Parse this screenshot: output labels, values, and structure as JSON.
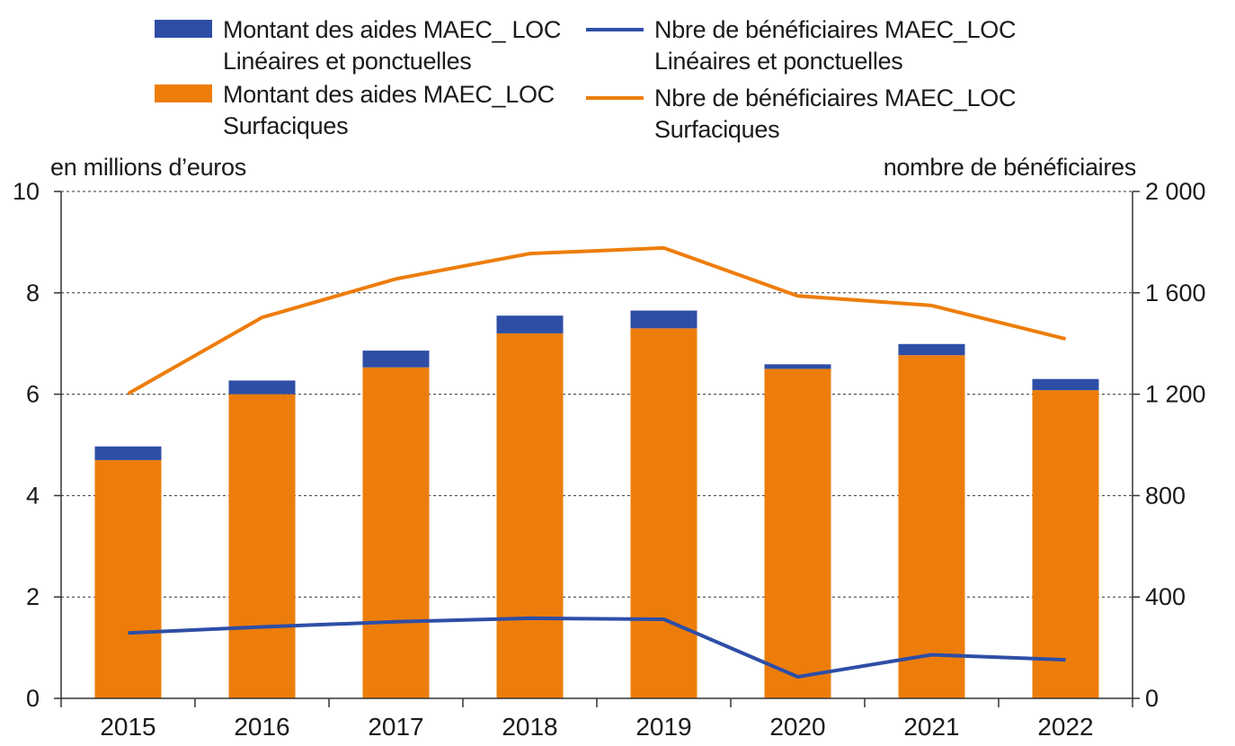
{
  "chart_data": {
    "type": "bar",
    "categories": [
      "2015",
      "2016",
      "2017",
      "2018",
      "2019",
      "2020",
      "2021",
      "2022"
    ],
    "y_left": {
      "label": "en millions d’euros",
      "range": [
        0,
        10
      ],
      "ticks": [
        0,
        2,
        4,
        6,
        8,
        10
      ],
      "tick_labels": [
        "0",
        "2",
        "4",
        "6",
        "8",
        "10"
      ]
    },
    "y_right": {
      "label": "nombre de bénéficiaires",
      "range": [
        0,
        2000
      ],
      "ticks": [
        0,
        400,
        800,
        1200,
        1600,
        2000
      ],
      "tick_labels": [
        "0",
        "400",
        "800",
        "1 200",
        "1 600",
        "2 000"
      ]
    },
    "bar_series": [
      {
        "name": "Montant des aides MAEC_LOC Surfaciques",
        "color": "#ED7D0B",
        "values": [
          4.7,
          6.0,
          6.53,
          7.2,
          7.3,
          6.5,
          6.77,
          6.08
        ]
      },
      {
        "name": "Montant des aides MAEC_ LOC Linéaires et ponctuelles",
        "color": "#2E4EA6",
        "values": [
          0.27,
          0.27,
          0.33,
          0.35,
          0.35,
          0.09,
          0.22,
          0.22
        ]
      }
    ],
    "line_series": [
      {
        "name": "Nbre de bénéficiaires MAEC_LOC Linéaires et ponctuelles",
        "color": "#2E4EA6",
        "axis": "right",
        "values": [
          258,
          282,
          302,
          316,
          312,
          85,
          172,
          152
        ]
      },
      {
        "name": "Nbre de bénéficiaires  MAEC_LOC Surfaciques",
        "color": "#ED7D0B",
        "axis": "right",
        "values": [
          1202,
          1503,
          1655,
          1755,
          1777,
          1588,
          1550,
          1418
        ]
      }
    ],
    "stacked": true,
    "grid": true,
    "legend_position": "top"
  },
  "legend": {
    "bar_linear": "Montant des aides MAEC_ LOC\nLinéaires et ponctuelles",
    "bar_surf": "Montant des aides MAEC_LOC\nSurfaciques",
    "line_linear": "Nbre de bénéficiaires MAEC_LOC\nLinéaires et ponctuelles",
    "line_surf": "Nbre de bénéficiaires  MAEC_LOC\nSurfaciques"
  }
}
